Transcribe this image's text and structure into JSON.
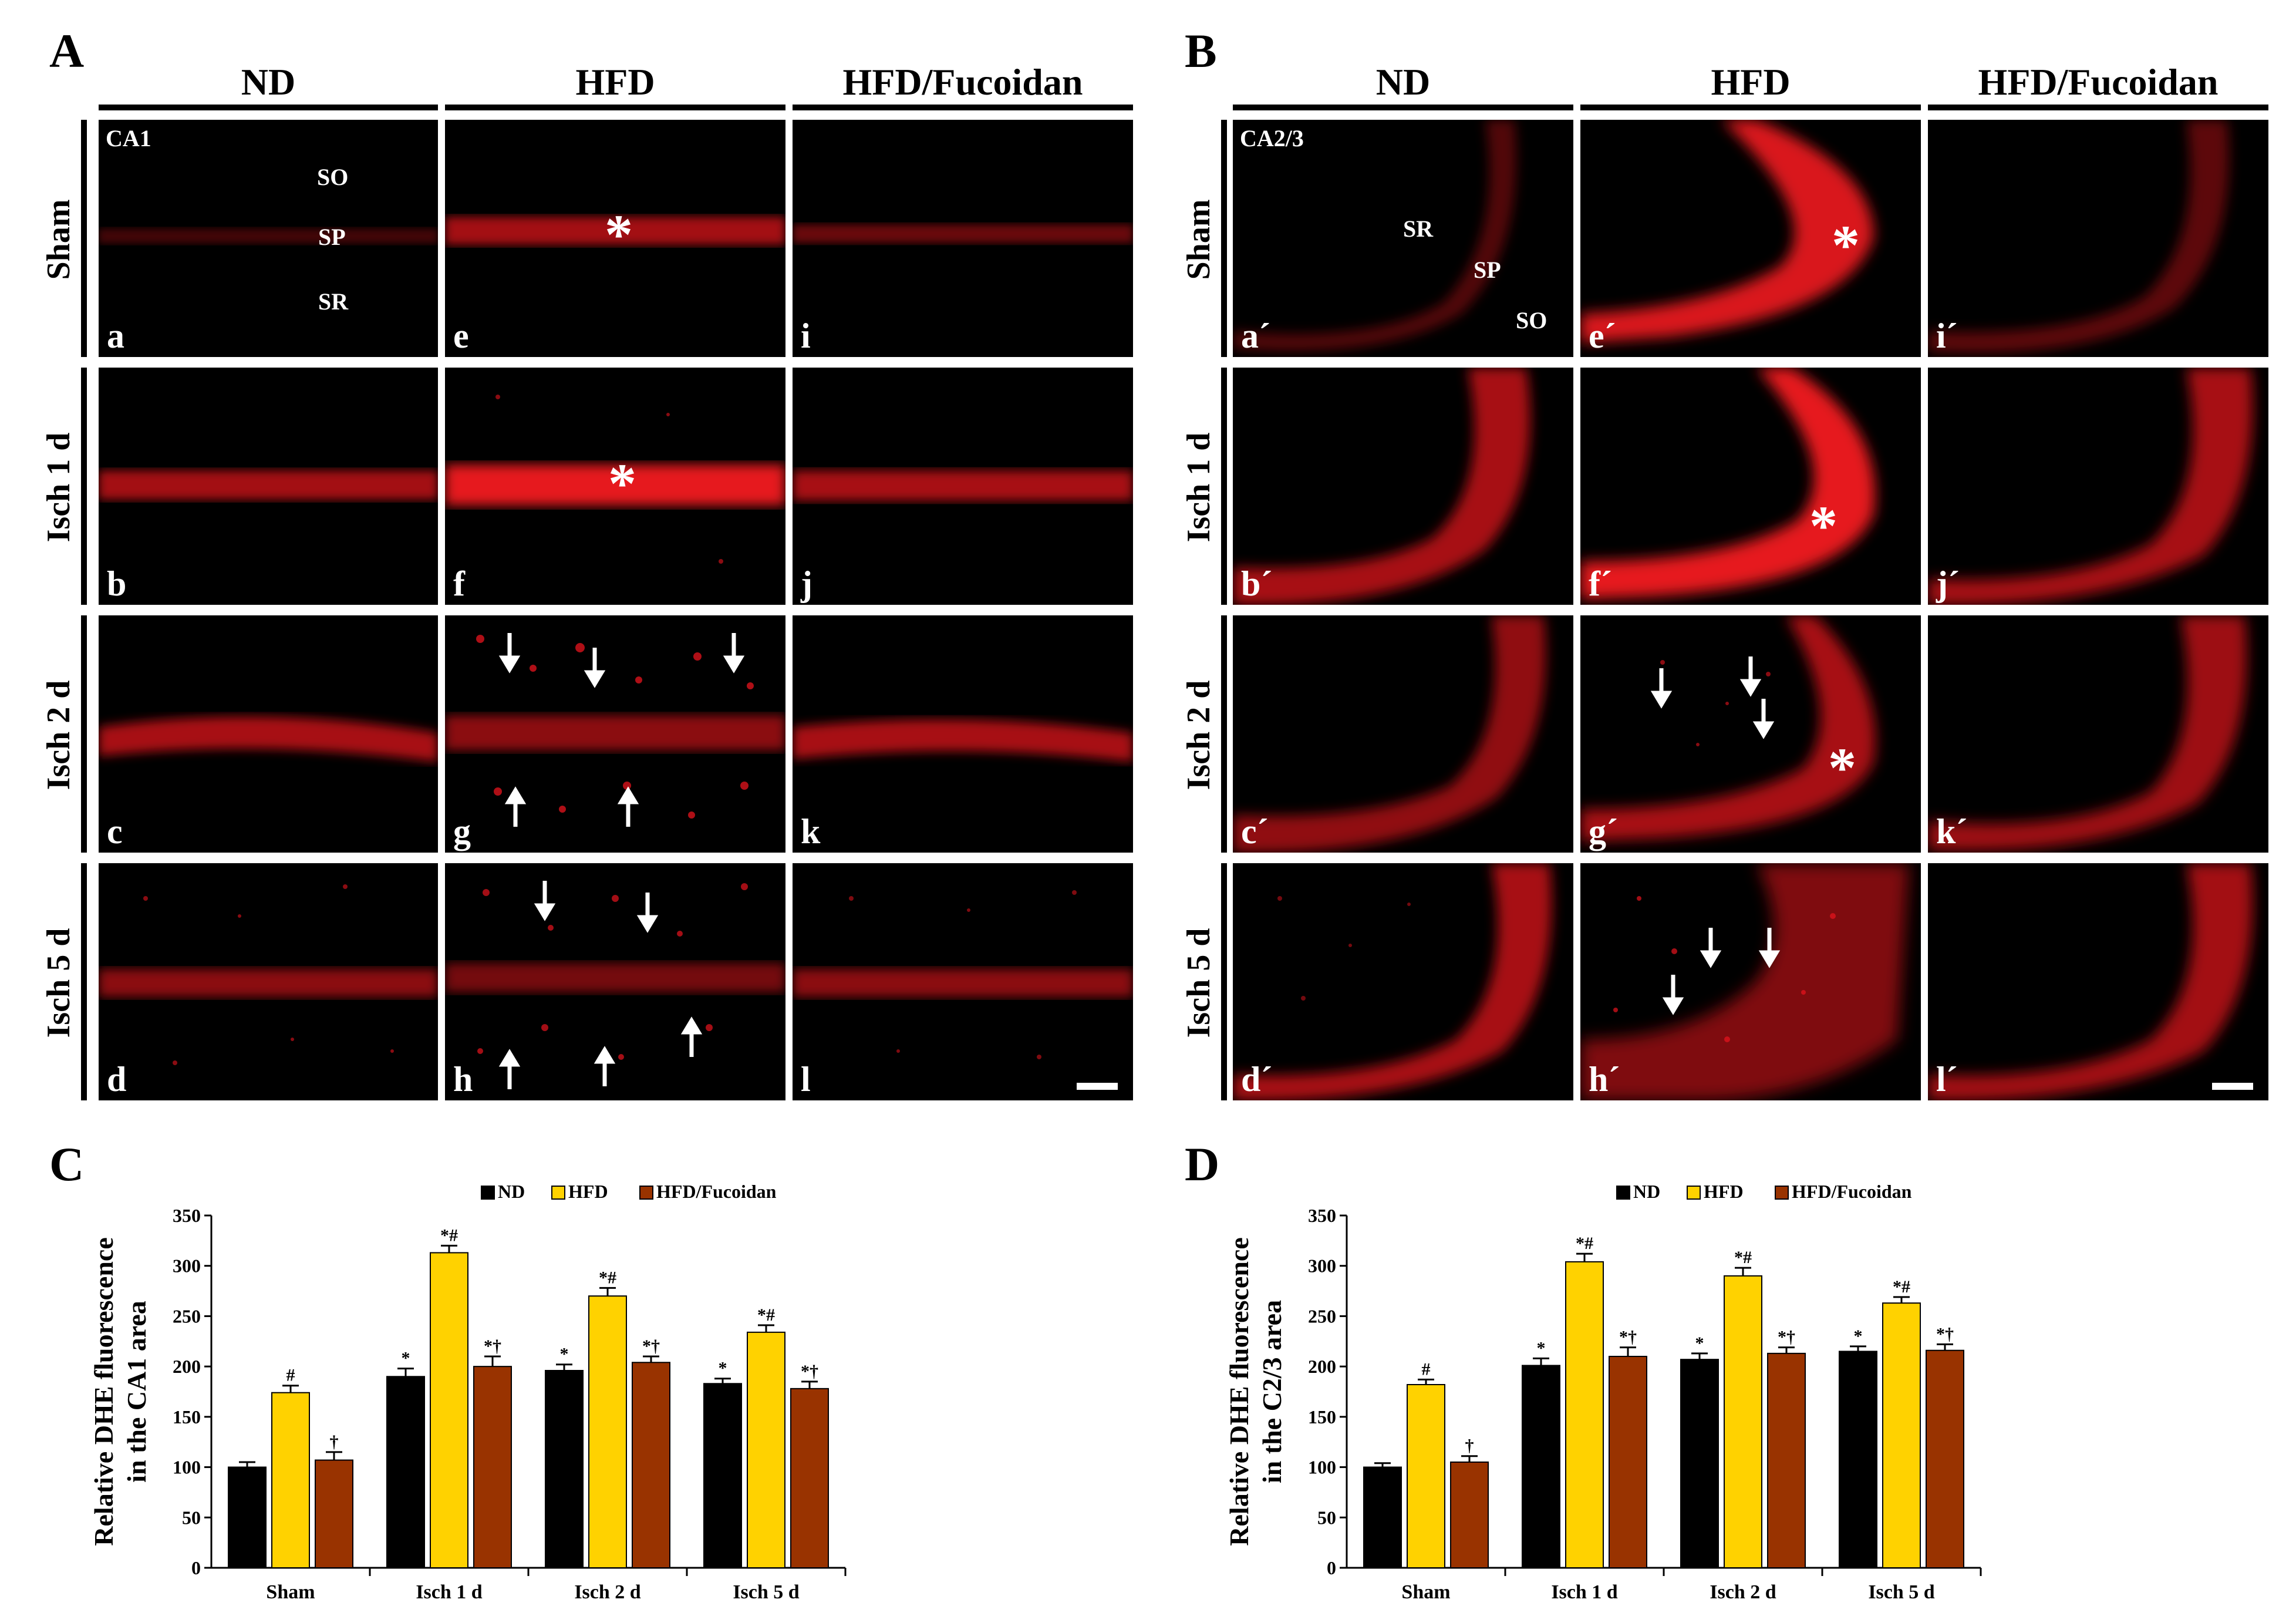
{
  "panel_labels": [
    "A",
    "B",
    "C",
    "D"
  ],
  "columns": [
    "ND",
    "HFD",
    "HFD/Fucoidan"
  ],
  "rows": [
    "Sham",
    "Isch 1 d",
    "Isch 2 d",
    "Isch 5 d"
  ],
  "panelA": {
    "region": "CA1",
    "layers": [
      "SO",
      "SP",
      "SR"
    ],
    "letters": [
      "a",
      "b",
      "c",
      "d",
      "e",
      "f",
      "g",
      "h",
      "i",
      "j",
      "k",
      "l"
    ]
  },
  "panelB": {
    "region": "CA2/3",
    "layers": [
      "SR",
      "SP",
      "SO"
    ],
    "letters": [
      "a´",
      "b´",
      "c´",
      "d´",
      "e´",
      "f´",
      "g´",
      "h´",
      "i´",
      "j´",
      "k´",
      "l´"
    ]
  },
  "star_symbol": "*",
  "colors": {
    "ND": "#000000",
    "HFD": "#ffd200",
    "HFD/Fucoidan": "#993300",
    "stain": "#e8141e"
  },
  "chart_data": [
    {
      "type": "bar",
      "panel": "C",
      "ylabel": "Relative DHE fluorescence in the CA1 area",
      "ylabel_lines": [
        "Relative DHE fluorescence",
        "in the CA1 area"
      ],
      "categories": [
        "Sham",
        "Isch 1 d",
        "Isch 2 d",
        "Isch 5 d"
      ],
      "ylim": [
        0,
        350
      ],
      "yticks": [
        0,
        50,
        100,
        150,
        200,
        250,
        300,
        350
      ],
      "legend": [
        "ND",
        "HFD",
        "HFD/Fucoidan"
      ],
      "series": [
        {
          "name": "ND",
          "values": [
            100,
            190,
            196,
            183
          ],
          "errors": [
            5,
            8,
            6,
            5
          ],
          "sig": [
            "",
            "*",
            "*",
            "*"
          ]
        },
        {
          "name": "HFD",
          "values": [
            174,
            313,
            270,
            234
          ],
          "errors": [
            7,
            7,
            8,
            7
          ],
          "sig": [
            "#",
            "*#",
            "*#",
            "*#"
          ]
        },
        {
          "name": "HFD/Fucoidan",
          "values": [
            107,
            200,
            204,
            178
          ],
          "errors": [
            8,
            10,
            6,
            7
          ],
          "sig": [
            "†",
            "*†",
            "*†",
            "*†"
          ]
        }
      ]
    },
    {
      "type": "bar",
      "panel": "D",
      "ylabel": "Relative DHE fluorescence in the C2/3 area",
      "ylabel_lines": [
        "Relative DHE fluorescence",
        "in the C2/3 area"
      ],
      "categories": [
        "Sham",
        "Isch 1 d",
        "Isch 2 d",
        "Isch 5 d"
      ],
      "ylim": [
        0,
        350
      ],
      "yticks": [
        0,
        50,
        100,
        150,
        200,
        250,
        300,
        350
      ],
      "legend": [
        "ND",
        "HFD",
        "HFD/Fucoidan"
      ],
      "series": [
        {
          "name": "ND",
          "values": [
            100,
            201,
            207,
            215
          ],
          "errors": [
            4,
            7,
            6,
            5
          ],
          "sig": [
            "",
            "*",
            "*",
            "*"
          ]
        },
        {
          "name": "HFD",
          "values": [
            182,
            304,
            290,
            263
          ],
          "errors": [
            5,
            8,
            8,
            6
          ],
          "sig": [
            "#",
            "*#",
            "*#",
            "*#"
          ]
        },
        {
          "name": "HFD/Fucoidan",
          "values": [
            105,
            210,
            213,
            216
          ],
          "errors": [
            6,
            9,
            6,
            6
          ],
          "sig": [
            "†",
            "*†",
            "*†",
            "*†"
          ]
        }
      ]
    }
  ]
}
